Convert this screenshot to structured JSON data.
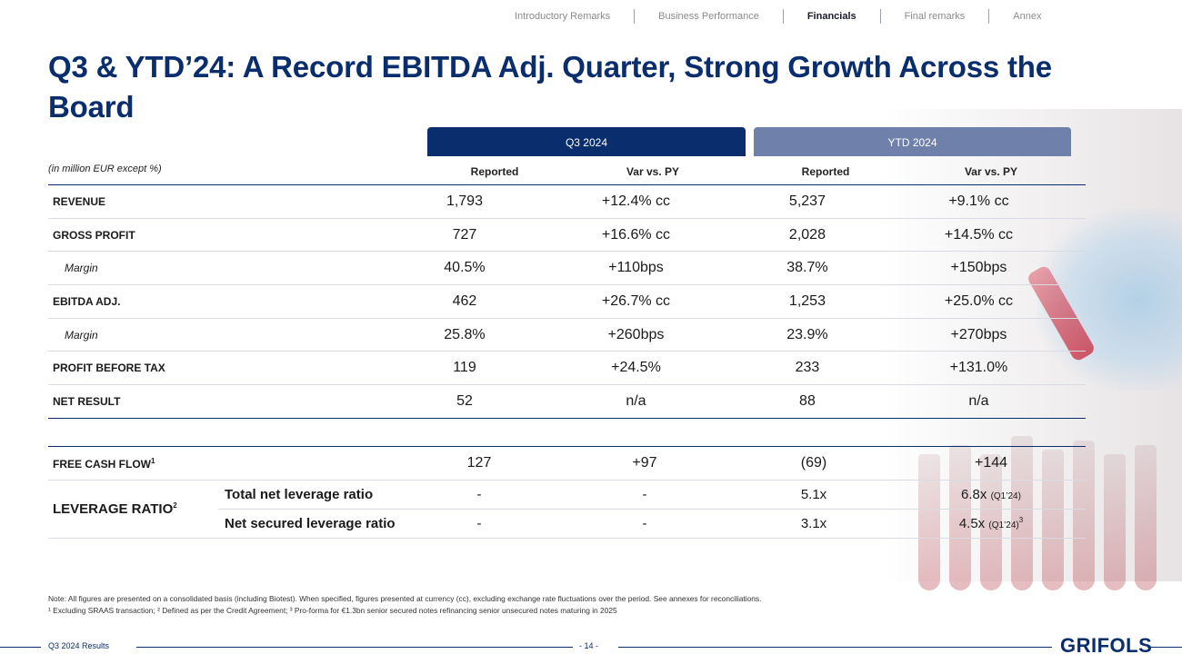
{
  "nav": {
    "items": [
      "Introductory Remarks",
      "Business Performance",
      "Financials",
      "Final remarks",
      "Annex"
    ],
    "active": "Financials"
  },
  "title": "Q3 & YTD’24: A Record EBITDA Adj. Quarter, Strong Growth Across the Board",
  "header": {
    "q3_tab": "Q3 2024",
    "ytd_tab": "YTD 2024",
    "units": "(in million EUR except %)",
    "col_reported": "Reported",
    "col_var": "Var vs. PY"
  },
  "rows": [
    {
      "label": "REVENUE",
      "q3_reported": "1,793",
      "q3_var": "+12.4% cc",
      "ytd_reported": "5,237",
      "ytd_var": "+9.1% cc"
    },
    {
      "label": "GROSS PROFIT",
      "q3_reported": "727",
      "q3_var": "+16.6% cc",
      "ytd_reported": "2,028",
      "ytd_var": "+14.5% cc"
    },
    {
      "label": "Margin",
      "q3_reported": "40.5%",
      "q3_var": "+110bps",
      "ytd_reported": "38.7%",
      "ytd_var": "+150bps"
    },
    {
      "label": "EBITDA ADJ.",
      "q3_reported": "462",
      "q3_var": "+26.7% cc",
      "ytd_reported": "1,253",
      "ytd_var": "+25.0% cc"
    },
    {
      "label": "Margin",
      "q3_reported": "25.8%",
      "q3_var": "+260bps",
      "ytd_reported": "23.9%",
      "ytd_var": "+270bps"
    },
    {
      "label": "PROFIT BEFORE TAX",
      "q3_reported": "119",
      "q3_var": "+24.5%",
      "ytd_reported": "233",
      "ytd_var": "+131.0%"
    },
    {
      "label": "NET RESULT",
      "q3_reported": "52",
      "q3_var": "n/a",
      "ytd_reported": "88",
      "ytd_var": "n/a"
    }
  ],
  "fcf": {
    "label": "FREE CASH FLOW",
    "sup": "1",
    "q3_reported": "127",
    "q3_var": "+97",
    "ytd_reported": "(69)",
    "ytd_var": "+144"
  },
  "leverage": {
    "label": "LEVERAGE RATIO",
    "sup": "2",
    "total": {
      "label": "Total net leverage ratio",
      "q3_reported": "-",
      "q3_var": "-",
      "ytd_reported": "5.1x",
      "ytd_var": "6.8x",
      "ytd_var_note": "(Q1’24)"
    },
    "secured": {
      "label": "Net secured leverage ratio",
      "q3_reported": "-",
      "q3_var": "-",
      "ytd_reported": "3.1x",
      "ytd_var": "4.5x",
      "ytd_var_note": "(Q1’24)",
      "ytd_var_sup": "3"
    }
  },
  "notes": {
    "line1": "Note: All figures are presented on a consolidated basis (including Biotest). When specified, figures presented at currency (cc), excluding exchange rate fluctuations over the period. See annexes for reconciliations.",
    "line2": "¹ Excluding SRAAS transaction; ² Defined as per the Credit Agreement; ³ Pro-forma for €1.3bn senior secured notes refinancing senior unsecured notes maturing in 2025"
  },
  "footer": {
    "left": "Q3 2024 Results",
    "page": "- 14 -",
    "logo": "GRIFOLS"
  }
}
